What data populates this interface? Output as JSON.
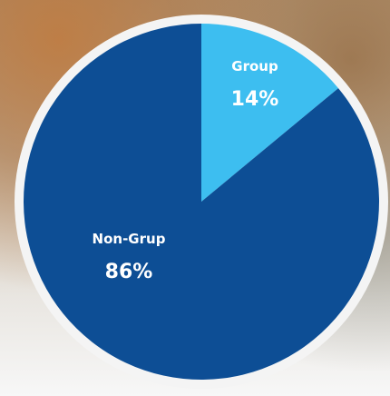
{
  "chart_data": {
    "type": "pie",
    "categories": [
      "Group",
      "Non-Grup"
    ],
    "values": [
      14,
      86
    ],
    "value_labels": [
      "14%",
      "86%"
    ],
    "colors": [
      "#3dbef0",
      "#0d4e95"
    ]
  }
}
